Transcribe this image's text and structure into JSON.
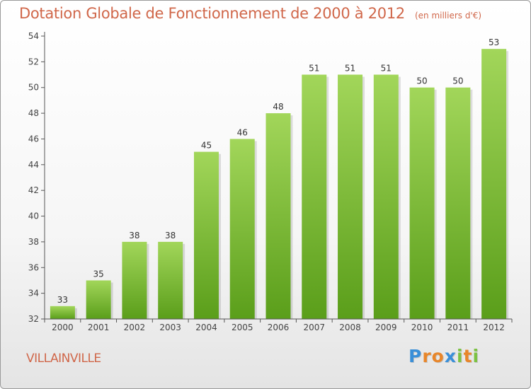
{
  "chart_data": {
    "type": "bar",
    "title": "Dotation Globale de Fonctionnement de 2000 à 2012",
    "subtitle": "(en milliers d'€)",
    "categories": [
      "2000",
      "2001",
      "2002",
      "2003",
      "2004",
      "2005",
      "2006",
      "2007",
      "2008",
      "2009",
      "2010",
      "2011",
      "2012"
    ],
    "values": [
      33,
      35,
      38,
      38,
      45,
      46,
      48,
      51,
      51,
      51,
      50,
      50,
      53
    ],
    "data_labels": [
      "33",
      "35",
      "38",
      "38",
      "45",
      "46",
      "48",
      "51",
      "51",
      "51",
      "50",
      "50",
      "53"
    ],
    "ylim": [
      32,
      54
    ],
    "yticks": [
      32,
      34,
      36,
      38,
      40,
      42,
      44,
      46,
      48,
      50,
      52,
      54
    ],
    "grid": false,
    "bar_color_top": "#a2d65a",
    "bar_color_bottom": "#5a9e1a"
  },
  "footer": {
    "commune": "VILLAINVILLE",
    "logo_letters": [
      "P",
      "r",
      "o",
      "x",
      "i",
      "t",
      "i"
    ],
    "logo_colors": [
      "#3a8fd8",
      "#e8862a",
      "#e8862a",
      "#3a8fd8",
      "#7cc242",
      "#e8862a",
      "#7cc242"
    ]
  },
  "colors": {
    "title": "#d0674a",
    "axis": "#555555"
  }
}
